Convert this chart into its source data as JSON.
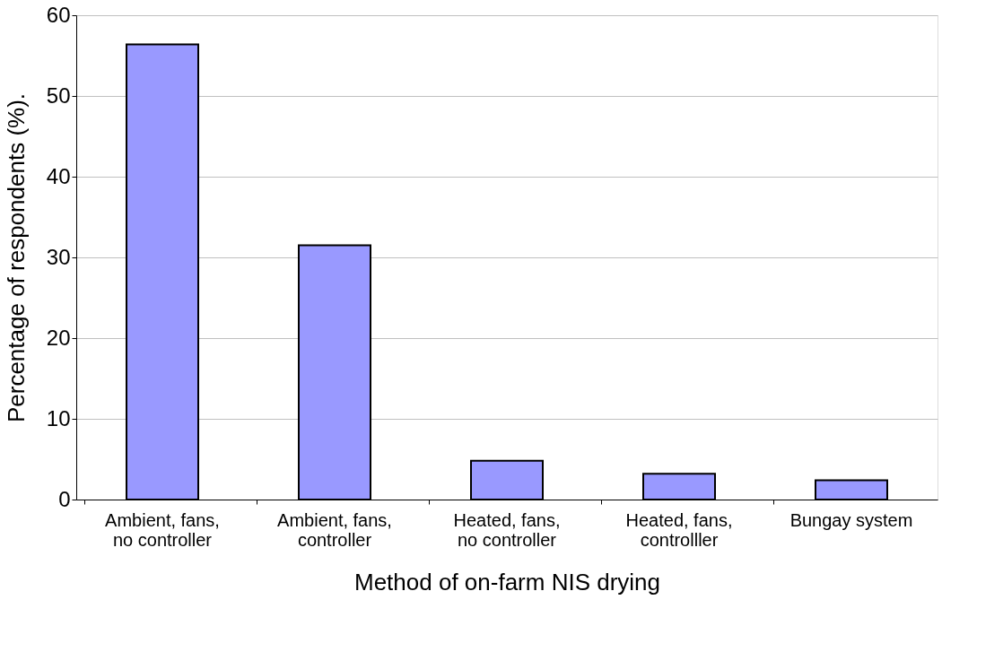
{
  "chart_data": {
    "type": "bar",
    "categories": [
      "Ambient, fans, no controller",
      "Ambient, fans, controller",
      "Heated, fans, no controller",
      "Heated, fans, controlller",
      "Bungay system"
    ],
    "values": [
      56.4,
      31.5,
      4.8,
      3.2,
      2.4
    ],
    "color": "#9999ff",
    "xlabel": "Method of on-farm NIS drying",
    "ylabel": "Percentage of respondents (%).",
    "ylim": [
      0,
      60
    ],
    "yticks": [
      0,
      10,
      20,
      30,
      40,
      50,
      60
    ],
    "grid": "y"
  }
}
